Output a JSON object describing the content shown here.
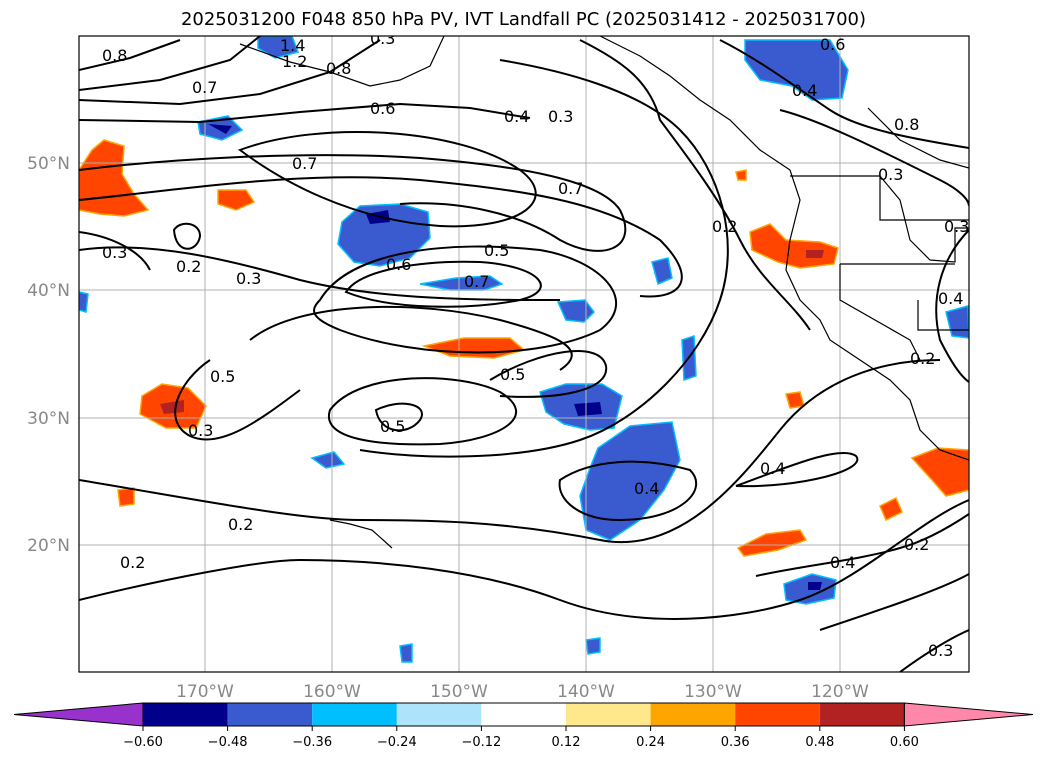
{
  "title": "2025031200 F048 850 hPa PV, IVT Landfall PC (2025031412 - 2025031700)",
  "lat_labels": [
    "50°N",
    "40°N",
    "30°N",
    "20°N"
  ],
  "lon_labels": [
    "170°W",
    "160°W",
    "150°W",
    "140°W",
    "130°W",
    "120°W"
  ],
  "contour_labels": [
    "0.8",
    "1.4",
    "1.2",
    "0.8",
    "0.7",
    "0.6",
    "0.4",
    "0.3",
    "0.7",
    "0.7",
    "0.5",
    "0.6",
    "0.7",
    "0.3",
    "0.2",
    "0.3",
    "0.5",
    "0.3",
    "0.5",
    "0.5",
    "0.2",
    "0.2",
    "0.4",
    "0.4",
    "0.2",
    "0.3",
    "0.2",
    "0.3",
    "0.4",
    "0.8",
    "0.6",
    "0.4",
    "0.3",
    "0.2",
    "0.4",
    "0.3"
  ],
  "colorbar": {
    "ticks": [
      "−0.60",
      "−0.48",
      "−0.36",
      "−0.24",
      "−0.12",
      "0.12",
      "0.24",
      "0.36",
      "0.48",
      "0.60"
    ],
    "colors": [
      "#9932cc",
      "#00008b",
      "#3a5bcf",
      "#00bfff",
      "#aee4fb",
      "#ffffff",
      "#ffe88c",
      "#ffa500",
      "#ff4500",
      "#b22222",
      "#ff88aa"
    ]
  },
  "colors": {
    "land_outline": "#000000",
    "grid": "#b0b0b0",
    "label_gray": "#888888"
  }
}
